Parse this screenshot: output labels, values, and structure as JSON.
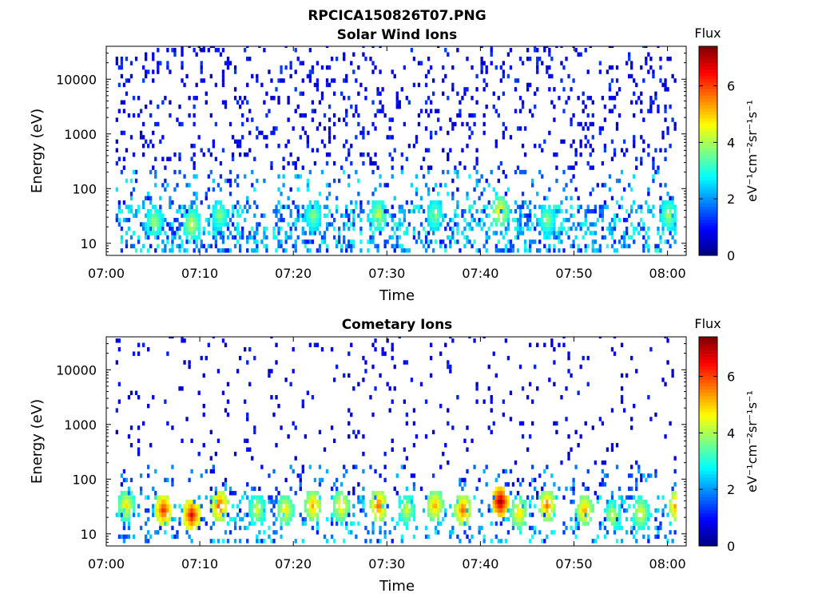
{
  "figure_title": "RPCICA150826T07.PNG",
  "colors": {
    "colormap": [
      "#00007f",
      "#0000ff",
      "#0080ff",
      "#00ffff",
      "#80ff80",
      "#ffff00",
      "#ff8000",
      "#ff0000",
      "#7f0000"
    ],
    "axis": "#000000",
    "background": "#ffffff"
  },
  "chart_data": [
    {
      "type": "heatmap",
      "title": "Solar Wind Ions",
      "xlabel": "Time",
      "ylabel": "Energy (eV)",
      "y_scale": "log",
      "xlim": [
        "07:00",
        "08:02"
      ],
      "ylim": [
        6,
        40000
      ],
      "xticks": [
        "07:00",
        "07:10",
        "07:20",
        "07:30",
        "07:40",
        "07:50",
        "08:00"
      ],
      "yticks": [
        "10",
        "100",
        "1000",
        "10000"
      ],
      "colorbar": {
        "title": "Flux",
        "label": "eV⁻¹cm⁻²sr⁻¹s⁻¹",
        "range": [
          0,
          7.4
        ],
        "ticks": [
          "0",
          "2",
          "4",
          "6"
        ]
      },
      "description_of_values": "sparse low flux (0-2) at 100-30000 eV, moderate flux (2-5) near 15-40 eV",
      "peak_bursts": [
        {
          "time": "07:05",
          "energy_eV": 22,
          "flux": 4.2
        },
        {
          "time": "07:09",
          "energy_eV": 20,
          "flux": 4.5
        },
        {
          "time": "07:12",
          "energy_eV": 30,
          "flux": 4.0
        },
        {
          "time": "07:22",
          "energy_eV": 30,
          "flux": 4.0
        },
        {
          "time": "07:29",
          "energy_eV": 30,
          "flux": 4.5
        },
        {
          "time": "07:35",
          "energy_eV": 30,
          "flux": 4.0
        },
        {
          "time": "07:42",
          "energy_eV": 35,
          "flux": 5.0
        },
        {
          "time": "07:47",
          "energy_eV": 25,
          "flux": 4.0
        },
        {
          "time": "08:00",
          "energy_eV": 30,
          "flux": 4.2
        }
      ],
      "grid": false
    },
    {
      "type": "heatmap",
      "title": "Cometary Ions",
      "xlabel": "Time",
      "ylabel": "Energy (eV)",
      "y_scale": "log",
      "xlim": [
        "07:00",
        "08:02"
      ],
      "ylim": [
        6,
        40000
      ],
      "xticks": [
        "07:00",
        "07:10",
        "07:20",
        "07:30",
        "07:40",
        "07:50",
        "08:00"
      ],
      "yticks": [
        "10",
        "100",
        "1000",
        "10000"
      ],
      "colorbar": {
        "title": "Flux",
        "label": "eV⁻¹cm⁻²sr⁻¹s⁻¹",
        "range": [
          0,
          7.4
        ],
        "ticks": [
          "0",
          "2",
          "4",
          "6"
        ]
      },
      "description_of_values": "intense bursts (4-7.4) at 10-50 eV, sparse dots up to 10000 eV",
      "peak_bursts": [
        {
          "time": "07:02",
          "energy_eV": 30,
          "flux": 5.0
        },
        {
          "time": "07:06",
          "energy_eV": 25,
          "flux": 6.5
        },
        {
          "time": "07:09",
          "energy_eV": 20,
          "flux": 6.8
        },
        {
          "time": "07:12",
          "energy_eV": 30,
          "flux": 6.2
        },
        {
          "time": "07:16",
          "energy_eV": 25,
          "flux": 4.5
        },
        {
          "time": "07:19",
          "energy_eV": 25,
          "flux": 5.0
        },
        {
          "time": "07:22",
          "energy_eV": 30,
          "flux": 5.5
        },
        {
          "time": "07:25",
          "energy_eV": 30,
          "flux": 5.2
        },
        {
          "time": "07:29",
          "energy_eV": 30,
          "flux": 6.0
        },
        {
          "time": "07:32",
          "energy_eV": 25,
          "flux": 4.5
        },
        {
          "time": "07:35",
          "energy_eV": 30,
          "flux": 5.5
        },
        {
          "time": "07:38",
          "energy_eV": 25,
          "flux": 6.0
        },
        {
          "time": "07:42",
          "energy_eV": 35,
          "flux": 7.4
        },
        {
          "time": "07:44",
          "energy_eV": 22,
          "flux": 5.2
        },
        {
          "time": "07:47",
          "energy_eV": 30,
          "flux": 5.8
        },
        {
          "time": "07:51",
          "energy_eV": 25,
          "flux": 5.5
        },
        {
          "time": "07:54",
          "energy_eV": 20,
          "flux": 4.5
        },
        {
          "time": "07:57",
          "energy_eV": 22,
          "flux": 4.8
        },
        {
          "time": "08:01",
          "energy_eV": 30,
          "flux": 6.2
        }
      ],
      "grid": false
    }
  ]
}
